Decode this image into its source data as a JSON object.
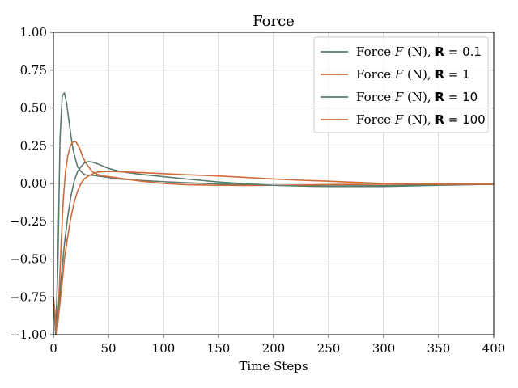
{
  "chart_data": {
    "type": "line",
    "title": "Force",
    "xlabel": "Time Steps",
    "ylabel": "",
    "xlim": [
      0,
      400
    ],
    "ylim": [
      -1.0,
      1.0
    ],
    "xticks": [
      "0",
      "50",
      "100",
      "150",
      "200",
      "250",
      "300",
      "350",
      "400"
    ],
    "yticks": [
      "−1.00",
      "−0.75",
      "−0.50",
      "−0.25",
      "0.00",
      "0.25",
      "0.50",
      "0.75",
      "1.00"
    ],
    "grid": true,
    "legend_position": "top-right",
    "series": [
      {
        "name": "Force F (N), R = 0.1",
        "color": "#5a7a6a",
        "x": [
          0,
          2,
          4,
          6,
          8,
          10,
          12,
          14,
          16,
          18,
          20,
          22,
          25,
          28,
          30,
          35,
          40,
          45,
          50,
          60,
          70,
          80,
          100,
          120,
          150,
          200,
          250,
          300,
          350,
          400
        ],
        "y": [
          -0.75,
          -1.0,
          -0.55,
          0.3,
          0.58,
          0.6,
          0.53,
          0.42,
          0.31,
          0.22,
          0.16,
          0.11,
          0.08,
          0.06,
          0.055,
          0.055,
          0.05,
          0.045,
          0.04,
          0.03,
          0.025,
          0.02,
          0.012,
          0.005,
          -0.003,
          -0.012,
          -0.016,
          -0.015,
          -0.008,
          -0.005
        ]
      },
      {
        "name": "Force F (N), R = 1",
        "color": "#d06a38",
        "x": [
          0,
          3,
          5,
          7,
          9,
          11,
          13,
          15,
          17,
          19,
          21,
          24,
          27,
          30,
          35,
          40,
          45,
          50,
          60,
          70,
          80,
          100,
          120,
          150,
          180,
          200,
          250,
          300,
          350,
          400
        ],
        "y": [
          -0.75,
          -1.0,
          -0.75,
          -0.4,
          -0.1,
          0.08,
          0.18,
          0.24,
          0.27,
          0.28,
          0.27,
          0.23,
          0.17,
          0.13,
          0.08,
          0.06,
          0.05,
          0.045,
          0.035,
          0.025,
          0.015,
          0.0,
          -0.008,
          -0.012,
          -0.013,
          -0.012,
          -0.008,
          -0.005,
          -0.003,
          -0.002
        ]
      },
      {
        "name": "Force F (N), R = 10",
        "color": "#5a7a6a",
        "x": [
          0,
          3,
          5,
          8,
          10,
          13,
          16,
          19,
          22,
          25,
          28,
          32,
          36,
          40,
          45,
          50,
          60,
          70,
          80,
          100,
          120,
          150,
          180,
          200,
          230,
          250,
          300,
          350,
          400
        ],
        "y": [
          -0.75,
          -1.0,
          -0.8,
          -0.55,
          -0.4,
          -0.22,
          -0.08,
          0.02,
          0.08,
          0.11,
          0.135,
          0.145,
          0.14,
          0.13,
          0.115,
          0.1,
          0.08,
          0.07,
          0.06,
          0.045,
          0.03,
          0.01,
          -0.005,
          -0.012,
          -0.018,
          -0.02,
          -0.02,
          -0.012,
          -0.005
        ]
      },
      {
        "name": "Force F (N), R = 100",
        "color": "#d06a38",
        "x": [
          0,
          3,
          5,
          8,
          10,
          13,
          16,
          19,
          22,
          25,
          28,
          32,
          36,
          40,
          45,
          50,
          60,
          70,
          80,
          100,
          120,
          150,
          180,
          200,
          230,
          250,
          300,
          350,
          400
        ],
        "y": [
          -0.75,
          -1.0,
          -0.85,
          -0.65,
          -0.5,
          -0.35,
          -0.22,
          -0.12,
          -0.05,
          0.0,
          0.03,
          0.05,
          0.065,
          0.075,
          0.078,
          0.08,
          0.078,
          0.075,
          0.072,
          0.065,
          0.058,
          0.05,
          0.038,
          0.03,
          0.02,
          0.015,
          0.0,
          -0.005,
          -0.005
        ]
      }
    ],
    "legend": [
      {
        "prefix": "Force ",
        "var": "F",
        "unit": " (N), ",
        "param": "R",
        "eq": " = 0.1"
      },
      {
        "prefix": "Force ",
        "var": "F",
        "unit": " (N), ",
        "param": "R",
        "eq": " = 1"
      },
      {
        "prefix": "Force ",
        "var": "F",
        "unit": " (N), ",
        "param": "R",
        "eq": " = 10"
      },
      {
        "prefix": "Force ",
        "var": "F",
        "unit": " (N), ",
        "param": "R",
        "eq": " = 100"
      }
    ]
  }
}
